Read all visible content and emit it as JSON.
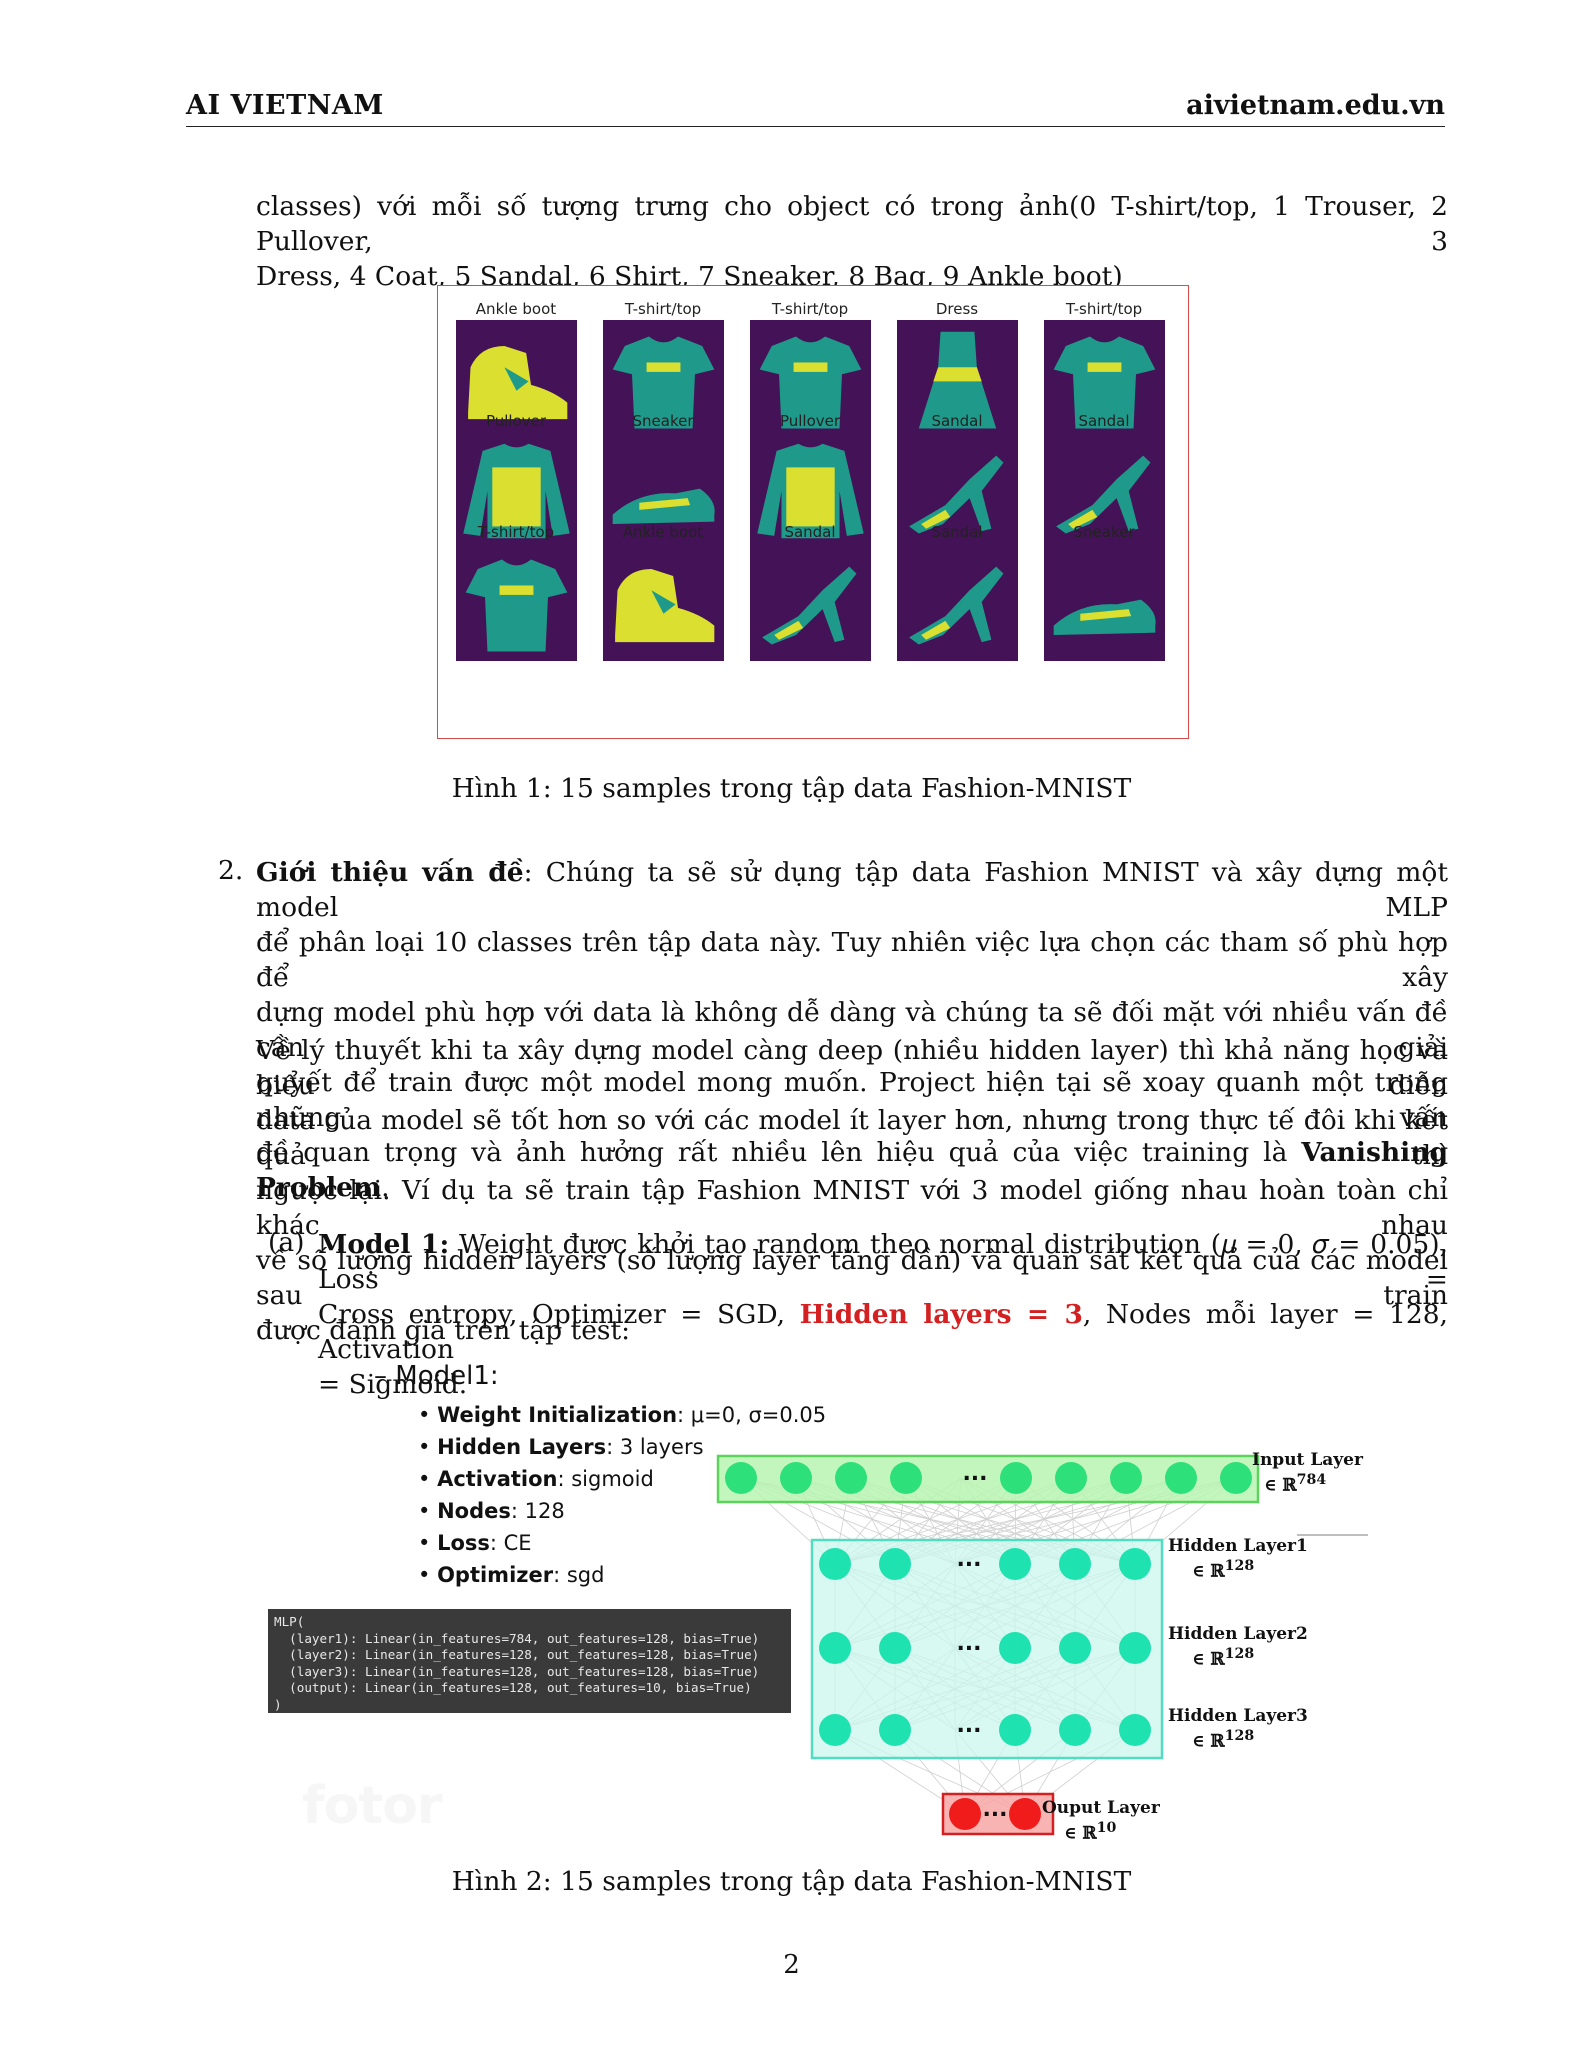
{
  "header": {
    "left": "AI VIETNAM",
    "right": "aivietnam.edu.vn"
  },
  "intro_lines": [
    "classes) với mỗi số tượng trưng cho object có trong ảnh(0 T-shirt/top, 1 Trouser, 2 Pullover, 3",
    "Dress, 4 Coat, 5 Sandal, 6 Shirt, 7 Sneaker, 8 Bag, 9 Ankle boot)"
  ],
  "figure1": {
    "labels": [
      [
        "Ankle boot",
        "T-shirt/top",
        "T-shirt/top",
        "Dress",
        "T-shirt/top"
      ],
      [
        "Pullover",
        "Sneaker",
        "Pullover",
        "Sandal",
        "Sandal"
      ],
      [
        "T-shirt/top",
        "Ankle boot",
        "Sandal",
        "Sandal",
        "Sneaker"
      ]
    ],
    "colors": {
      "background": "#441257",
      "mid": "#1f9a8a",
      "bright": "#dbe030",
      "frame": "#d94b4b"
    },
    "caption": "Hình 1: 15 samples trong tập data Fashion-MNIST"
  },
  "section2": {
    "number": "2.",
    "title": "Giới thiệu vấn đề",
    "p1_lines": [
      ": Chúng ta sẽ sử dụng tập data Fashion MNIST và xây dựng một model MLP",
      "để phân loại 10 classes trên tập data này. Tuy nhiên việc lựa chọn các tham số phù hợp để xây",
      "dựng model phù hợp với data là không dễ dàng và chúng ta sẽ đối mặt với nhiều vấn đề cần giải",
      "quyết để train được một model mong muốn. Project hiện tại sẽ xoay quanh một trong những vấn",
      "đề quan trọng và ảnh hưởng rất nhiều lên hiệu quả của việc training là "
    ],
    "p1_bold_end": "Vanishing Problem",
    "p1_end": ".",
    "p2_lines": [
      "Về lý thuyết khi ta xây dựng model càng deep (nhiều hidden layer) thì khả năng học và biểu diễn",
      "data của model sẽ tốt hơn so với các model ít layer hơn, nhưng trong thực tế đôi khi kết quả thì",
      "ngược lại. Ví dụ ta sẽ train tập Fashion MNIST với 3 model giống nhau hoàn toàn chỉ khác nhau",
      "về số lượng hidden layers (số lượng layer tăng dần) và quan sát kết quả của các model sau train",
      "được đánh giá trên tập test:"
    ]
  },
  "item_a": {
    "label": "(a)",
    "bold": "Model 1:",
    "line1": " Weight được khởi tạo random theo normal distribution (𝜇 = 0, 𝜎 = 0.05), Loss =",
    "line2_pre": "Cross entropy, Optimizer = SGD, ",
    "line2_red": "Hidden layers = 3",
    "line2_post": ", Nodes mỗi layer = 128, Activation",
    "line3": "= Sigmoid."
  },
  "figure2": {
    "title": "– Model1:",
    "bullets": [
      {
        "key": "Weight Initialization",
        "value": ": μ=0, σ=0.05"
      },
      {
        "key": "Hidden Layers",
        "value": ": 3 layers"
      },
      {
        "key": "Activation",
        "value": ": sigmoid"
      },
      {
        "key": "Nodes",
        "value": ": 128"
      },
      {
        "key": "Loss",
        "value": ": CE"
      },
      {
        "key": "Optimizer",
        "value": ": sgd"
      }
    ],
    "code": "MLP(\n  (layer1): Linear(in_features=784, out_features=128, bias=True)\n  (layer2): Linear(in_features=128, out_features=128, bias=True)\n  (layer3): Linear(in_features=128, out_features=128, bias=True)\n  (output): Linear(in_features=128, out_features=10, bias=True)\n)",
    "watermark": "fotor",
    "layers": [
      {
        "name": "Input Layer",
        "dim": "∈ ℝ",
        "exp": "784"
      },
      {
        "name": "Hidden Layer1",
        "dim": "∈ ℝ",
        "exp": "128"
      },
      {
        "name": "Hidden Layer2",
        "dim": "∈ ℝ",
        "exp": "128"
      },
      {
        "name": "Hidden Layer3",
        "dim": "∈ ℝ",
        "exp": "128"
      },
      {
        "name": "Ouput Layer",
        "dim": "∈ ℝ",
        "exp": "10"
      }
    ],
    "ellipsis": "...",
    "colors": {
      "input_fill": "#b9f5b0",
      "input_node": "#2ee07a",
      "hidden_fill": "#c9f7ee",
      "hidden_node": "#1ee3b0",
      "output_fill": "#f7a6a6",
      "output_node": "#f01b1b"
    },
    "caption": "Hình 2: 15 samples trong tập data Fashion-MNIST"
  },
  "page_number": "2"
}
